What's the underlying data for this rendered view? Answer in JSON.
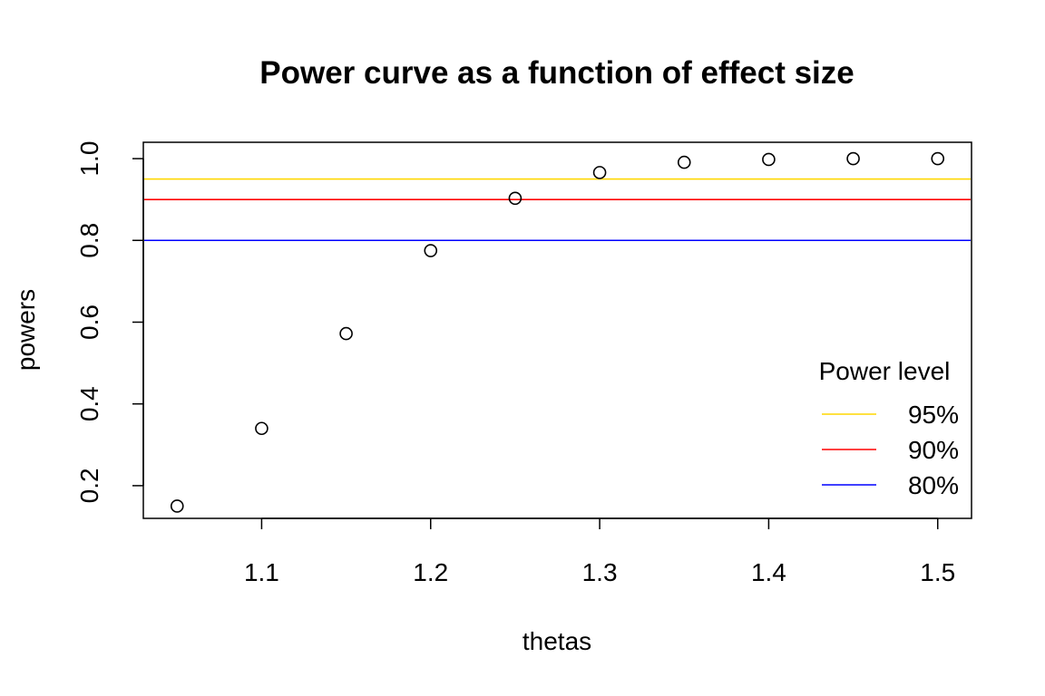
{
  "chart_data": {
    "type": "scatter",
    "title": "Power curve as a function of effect size",
    "xlabel": "thetas",
    "ylabel": "powers",
    "xlim": [
      1.03,
      1.52
    ],
    "ylim": [
      0.12,
      1.04
    ],
    "x_ticks": [
      1.1,
      1.2,
      1.3,
      1.4,
      1.5
    ],
    "x_tick_labels": [
      "1.1",
      "1.2",
      "1.3",
      "1.4",
      "1.5"
    ],
    "y_ticks": [
      0.2,
      0.4,
      0.6,
      0.8,
      1.0
    ],
    "y_tick_labels": [
      "0.2",
      "0.4",
      "0.6",
      "0.8",
      "1.0"
    ],
    "grid": false,
    "series": [
      {
        "marker": "open-circle",
        "color": "#000000",
        "x": [
          1.05,
          1.1,
          1.15,
          1.2,
          1.25,
          1.3,
          1.35,
          1.4,
          1.45,
          1.5
        ],
        "y": [
          0.15,
          0.34,
          0.572,
          0.775,
          0.903,
          0.966,
          0.991,
          0.998,
          1.0,
          1.0
        ]
      }
    ],
    "hlines": [
      {
        "y": 0.95,
        "color": "#FFD700",
        "label": "95%"
      },
      {
        "y": 0.9,
        "color": "#FF0000",
        "label": "90%"
      },
      {
        "y": 0.8,
        "color": "#0000FF",
        "label": "80%"
      }
    ],
    "legend": {
      "title": "Power level",
      "placement": "bottom-right",
      "entries": [
        {
          "label": "95%",
          "color": "#FFD700"
        },
        {
          "label": "90%",
          "color": "#FF0000"
        },
        {
          "label": "80%",
          "color": "#0000FF"
        }
      ]
    }
  }
}
